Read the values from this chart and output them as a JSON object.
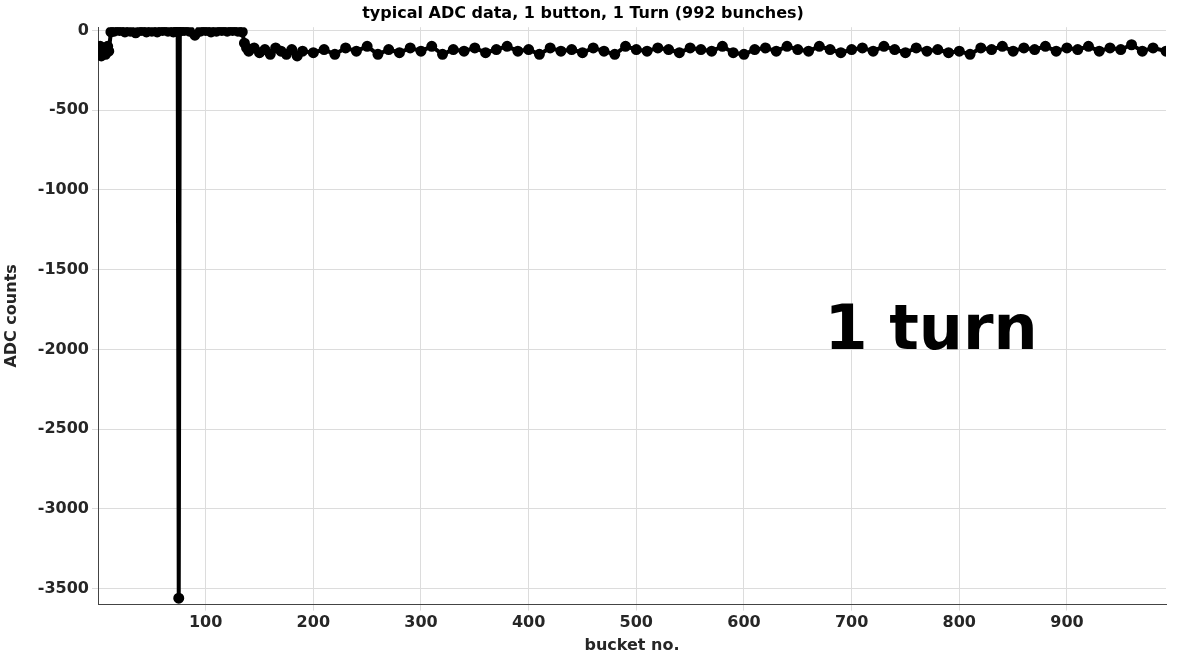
{
  "chart_data": {
    "type": "line",
    "title": "typical ADC data, 1 button, 1 Turn (992 bunches)",
    "xlabel": "bucket no.",
    "ylabel": "ADC counts",
    "annotations": [
      "1 turn"
    ],
    "x": [
      1,
      2,
      3,
      5,
      7,
      9,
      10,
      12,
      15,
      20,
      25,
      30,
      35,
      40,
      45,
      50,
      55,
      60,
      65,
      70,
      73,
      74,
      75,
      76,
      80,
      85,
      90,
      95,
      100,
      105,
      110,
      115,
      120,
      125,
      130,
      134,
      136,
      138,
      140,
      145,
      150,
      155,
      160,
      165,
      170,
      175,
      180,
      185,
      190,
      200,
      210,
      220,
      230,
      240,
      250,
      260,
      270,
      280,
      290,
      300,
      310,
      320,
      330,
      340,
      350,
      360,
      370,
      380,
      390,
      400,
      410,
      420,
      430,
      440,
      450,
      460,
      470,
      480,
      490,
      500,
      510,
      520,
      530,
      540,
      550,
      560,
      570,
      580,
      590,
      600,
      610,
      620,
      630,
      640,
      650,
      660,
      670,
      680,
      690,
      700,
      710,
      720,
      730,
      740,
      750,
      760,
      770,
      780,
      790,
      800,
      810,
      820,
      830,
      840,
      850,
      860,
      870,
      880,
      890,
      900,
      910,
      920,
      930,
      940,
      950,
      960,
      970,
      980,
      992
    ],
    "series": [
      {
        "color": "#000000",
        "values": [
          -150,
          -100,
          -160,
          -110,
          -150,
          -100,
          -130,
          -10,
          -5,
          0,
          -10,
          -5,
          -15,
          0,
          -10,
          -5,
          -10,
          0,
          -5,
          -10,
          -5,
          -5,
          -3560,
          -5,
          0,
          -5,
          -30,
          -5,
          0,
          -10,
          -5,
          0,
          -5,
          0,
          -5,
          -10,
          -80,
          -110,
          -130,
          -110,
          -140,
          -120,
          -150,
          -110,
          -130,
          -150,
          -120,
          -160,
          -130,
          -140,
          -120,
          -150,
          -110,
          -130,
          -100,
          -150,
          -120,
          -140,
          -110,
          -130,
          -100,
          -150,
          -120,
          -130,
          -110,
          -140,
          -120,
          -100,
          -130,
          -120,
          -150,
          -110,
          -130,
          -120,
          -140,
          -110,
          -130,
          -150,
          -100,
          -120,
          -130,
          -110,
          -120,
          -140,
          -110,
          -120,
          -130,
          -100,
          -140,
          -150,
          -120,
          -110,
          -130,
          -100,
          -120,
          -130,
          -100,
          -120,
          -140,
          -120,
          -110,
          -130,
          -100,
          -120,
          -140,
          -110,
          -130,
          -120,
          -140,
          -130,
          -150,
          -110,
          -120,
          -100,
          -130,
          -110,
          -120,
          -100,
          -130,
          -110,
          -120,
          -100,
          -130,
          -110,
          -120,
          -90,
          -130,
          -110,
          -130
        ]
      }
    ],
    "xlim": [
      0,
      992
    ],
    "xticks": [
      100,
      200,
      300,
      400,
      500,
      600,
      700,
      800,
      900
    ],
    "ylim": [
      -3600,
      20
    ],
    "yticks": [
      -3500,
      -3000,
      -2500,
      -2000,
      -1500,
      -1000,
      -500,
      0
    ],
    "grid": true,
    "legend": false,
    "marker": "circle",
    "line_style": "solid"
  }
}
